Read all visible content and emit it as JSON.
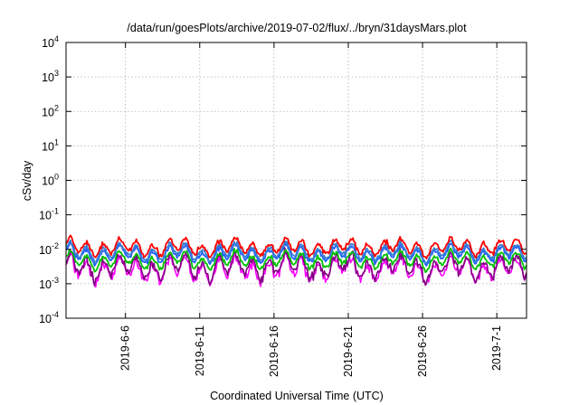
{
  "chart_data": {
    "type": "line",
    "title": "/data/run/goesPlots/archive/2019-07-02/flux/../bryn/31daysMars.plot",
    "xlabel": "Coordinated Universal Time (UTC)",
    "ylabel": "cSv/day",
    "yscale": "log",
    "ylim": [
      0.0001,
      10000
    ],
    "y_ticks": [
      {
        "base": "10",
        "exp": "-4"
      },
      {
        "base": "10",
        "exp": "-3"
      },
      {
        "base": "10",
        "exp": "-2"
      },
      {
        "base": "10",
        "exp": "-1"
      },
      {
        "base": "10",
        "exp": "0"
      },
      {
        "base": "10",
        "exp": "1"
      },
      {
        "base": "10",
        "exp": "2"
      },
      {
        "base": "10",
        "exp": "3"
      },
      {
        "base": "10",
        "exp": "4"
      }
    ],
    "xlim": [
      "2019-06-02",
      "2019-07-03"
    ],
    "x_ticks": [
      "2019-6-6",
      "2019-6-11",
      "2019-6-16",
      "2019-6-21",
      "2019-6-26",
      "2019-7-1"
    ],
    "x_tick_dates": [
      "2019-06-06",
      "2019-06-11",
      "2019-06-16",
      "2019-06-21",
      "2019-06-26",
      "2019-07-01"
    ],
    "grid": true,
    "series_colors": [
      "#ff00ff",
      "#800080",
      "#00c000",
      "#2060ff",
      "#3a7fd0",
      "#ff0000"
    ],
    "series_levels": [
      0.0026,
      0.0031,
      0.0048,
      0.0072,
      0.0085,
      0.0115
    ]
  }
}
